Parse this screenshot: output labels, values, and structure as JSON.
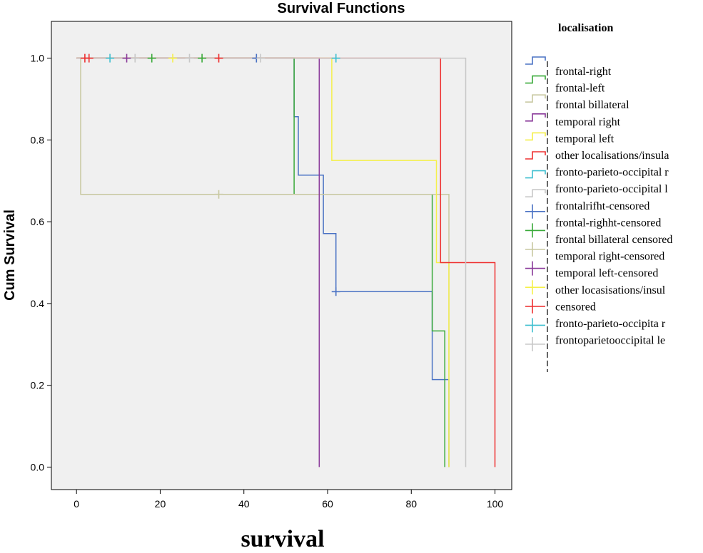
{
  "chart_data": {
    "type": "line",
    "subtype": "kaplan-meier",
    "title": "Survival Functions",
    "xlabel": "survival",
    "ylabel": "Cum Survival",
    "xlim": [
      -6,
      104
    ],
    "ylim": [
      -0.055,
      1.09
    ],
    "xticks": [
      0,
      20,
      40,
      60,
      80,
      100
    ],
    "yticks": [
      0.0,
      0.2,
      0.4,
      0.6,
      0.8,
      1.0
    ],
    "xtick_labels": [
      "0",
      "20",
      "40",
      "60",
      "80",
      "100"
    ],
    "ytick_labels": [
      "0.0",
      "0.2",
      "0.4",
      "0.6",
      "0.8",
      "1.0"
    ],
    "legend_title": "localisation",
    "legend_position": "right",
    "legend_entries": [
      "frontal-right",
      "frontal-left",
      "frontal billateral",
      "temporal right",
      "temporal left",
      "other localisations/insula",
      "fronto-parieto-occipital right",
      "fronto-parieto-occipital left",
      "frontalrifht-censored",
      "frontal-righht-censored",
      "frontal billateral censored",
      "temporal right-censored",
      "temporal left-censored",
      "other locasisations/insula-censored",
      "fronto-parieto-occipita right-censored",
      "frontoparietooccipital left-censored"
    ],
    "legend_lines": [
      "frontal-right",
      "frontal-left",
      "frontal billateral",
      "temporal right",
      "temporal left",
      "other localisations/insula",
      "fronto-parieto-occipital r",
      "fronto-parieto-occipital l",
      "frontalrifht-censored",
      "frontal-righht-censored",
      "frontal billateral censored",
      "temporal right-censored",
      "temporal left-censored",
      "other locasisations/insul",
      "censored",
      "fronto-parieto-occipita r",
      "frontoparietooccipital le"
    ],
    "legend_colors": [
      "#4a72c4",
      "#3aaa3a",
      "#c8c8a0",
      "#8a3a9a",
      "#f5f04a",
      "#ee3030",
      "#40c0d0",
      "#c8c8c8",
      "#4a72c4",
      "#3aaa3a",
      "#c8c8a0",
      "#8a3a9a",
      "#f5f04a",
      "#ee3030",
      "#40c0d0",
      "#c8c8c8"
    ],
    "series": [
      {
        "name": "frontal-right",
        "color": "#4a72c4",
        "points": [
          [
            0,
            1.0
          ],
          [
            52,
            1.0
          ],
          [
            52,
            0.857
          ],
          [
            53,
            0.857
          ],
          [
            53,
            0.714
          ],
          [
            59,
            0.714
          ],
          [
            59,
            0.571
          ],
          [
            62,
            0.571
          ],
          [
            62,
            0.429
          ],
          [
            85,
            0.429
          ],
          [
            85,
            0.214
          ],
          [
            89,
            0.214
          ],
          [
            89,
            0.0
          ]
        ],
        "censored": [
          [
            43,
            1.0
          ],
          [
            62,
            0.429
          ]
        ]
      },
      {
        "name": "frontal-left",
        "color": "#3aaa3a",
        "points": [
          [
            0,
            1.0
          ],
          [
            52,
            1.0
          ],
          [
            52,
            0.667
          ],
          [
            85,
            0.667
          ],
          [
            85,
            0.333
          ],
          [
            88,
            0.333
          ],
          [
            88,
            0.0
          ]
        ],
        "censored": [
          [
            18,
            1.0
          ],
          [
            30,
            1.0
          ]
        ]
      },
      {
        "name": "frontal billateral",
        "color": "#c8c8a0",
        "points": [
          [
            0,
            1.0
          ],
          [
            1,
            1.0
          ],
          [
            1,
            0.667
          ],
          [
            89,
            0.667
          ],
          [
            89,
            0.0
          ]
        ],
        "censored": [
          [
            34,
            0.667
          ]
        ]
      },
      {
        "name": "temporal right",
        "color": "#8a3a9a",
        "points": [
          [
            0,
            1.0
          ],
          [
            58,
            1.0
          ],
          [
            58,
            0.0
          ]
        ],
        "censored": [
          [
            12,
            1.0
          ]
        ]
      },
      {
        "name": "temporal left",
        "color": "#f5f04a",
        "points": [
          [
            0,
            1.0
          ],
          [
            61,
            1.0
          ],
          [
            61,
            0.75
          ],
          [
            86,
            0.75
          ],
          [
            86,
            0.5
          ],
          [
            89,
            0.5
          ],
          [
            89,
            0.0
          ]
        ],
        "censored": [
          [
            23,
            1.0
          ]
        ]
      },
      {
        "name": "other localisations/insula",
        "color": "#ee3030",
        "points": [
          [
            0,
            1.0
          ],
          [
            87,
            1.0
          ],
          [
            87,
            0.5
          ],
          [
            100,
            0.5
          ],
          [
            100,
            0.0
          ]
        ],
        "censored": [
          [
            2,
            1.0
          ],
          [
            3,
            1.0
          ],
          [
            34,
            1.0
          ]
        ]
      },
      {
        "name": "fronto-parieto-occipital right",
        "color": "#40c0d0",
        "points": [],
        "censored": [
          [
            8,
            1.0
          ],
          [
            62,
            1.0
          ]
        ]
      },
      {
        "name": "fronto-parieto-occipital left",
        "color": "#c8c8c8",
        "points": [
          [
            0,
            1.0
          ],
          [
            93,
            1.0
          ],
          [
            93,
            0.0
          ]
        ],
        "censored": [
          [
            14,
            1.0
          ],
          [
            27,
            1.0
          ],
          [
            44,
            1.0
          ]
        ]
      }
    ]
  }
}
